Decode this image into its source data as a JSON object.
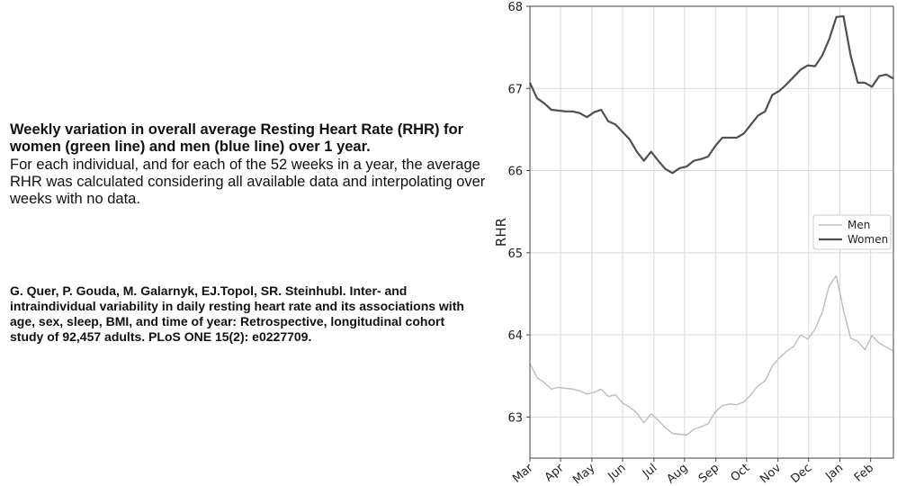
{
  "caption": {
    "title": "Weekly variation in overall average Resting Heart Rate (RHR) for women (green line) and men (blue line) over 1 year.",
    "body": "For each individual, and for each of the 52 weeks in a year, the average RHR was calculated considering all available data and interpolating over weeks with no data."
  },
  "citation": "G. Quer, P. Gouda, M. Galarnyk, EJ.Topol, SR. Steinhubl. Inter- and intraindividual variability in daily resting heart rate and its associations with age, sex, sleep, BMI, and time of year: Retrospective, longitudinal cohort study of 92,457 adults. PLoS ONE 15(2): e0227709.",
  "chart_data": {
    "type": "line",
    "title": "",
    "xlabel": "",
    "ylabel": "RHR",
    "ylim": [
      62.5,
      68
    ],
    "yticks": [
      63,
      64,
      65,
      66,
      67,
      68
    ],
    "xticks": [
      "Mar",
      "Apr",
      "May",
      "Jun",
      "Jul",
      "Aug",
      "Sep",
      "Oct",
      "Nov",
      "Dec",
      "Jan",
      "Feb"
    ],
    "xtick_weeks": [
      0,
      4.3,
      8.7,
      13,
      17.4,
      21.7,
      26.1,
      30.4,
      34.8,
      39.1,
      43.5,
      47.8
    ],
    "xlim": [
      0,
      51
    ],
    "grid": true,
    "legend_position": "right",
    "series": [
      {
        "name": "Men",
        "color": "#bdbdbd",
        "x": [
          0,
          1,
          2,
          3,
          4,
          5,
          6,
          7,
          8,
          9,
          10,
          11,
          12,
          13,
          14,
          15,
          16,
          17,
          18,
          19,
          20,
          21,
          22,
          23,
          24,
          25,
          26,
          27,
          28,
          29,
          30,
          31,
          32,
          33,
          34,
          35,
          36,
          37,
          38,
          39,
          40,
          41,
          42,
          43,
          44,
          45,
          46,
          47,
          48,
          49,
          50,
          51
        ],
        "values": [
          63.65,
          63.48,
          63.42,
          63.34,
          63.36,
          63.35,
          63.34,
          63.32,
          63.28,
          63.3,
          63.34,
          63.25,
          63.27,
          63.17,
          63.12,
          63.05,
          62.93,
          63.04,
          62.96,
          62.87,
          62.8,
          62.79,
          62.78,
          62.85,
          62.88,
          62.92,
          63.06,
          63.14,
          63.16,
          63.15,
          63.18,
          63.27,
          63.38,
          63.44,
          63.62,
          63.72,
          63.8,
          63.86,
          64,
          63.95,
          64.07,
          64.27,
          64.6,
          64.72,
          64.3,
          63.96,
          63.92,
          63.82,
          63.99,
          63.9,
          63.85,
          63.8
        ]
      },
      {
        "name": "Women",
        "color": "#505050",
        "x": [
          0,
          1,
          2,
          3,
          4,
          5,
          6,
          7,
          8,
          9,
          10,
          11,
          12,
          13,
          14,
          15,
          16,
          17,
          18,
          19,
          20,
          21,
          22,
          23,
          24,
          25,
          26,
          27,
          28,
          29,
          30,
          31,
          32,
          33,
          34,
          35,
          36,
          37,
          38,
          39,
          40,
          41,
          42,
          43,
          44,
          45,
          46,
          47,
          48,
          49,
          50,
          51
        ],
        "values": [
          67.07,
          66.88,
          66.82,
          66.74,
          66.73,
          66.72,
          66.72,
          66.7,
          66.65,
          66.71,
          66.74,
          66.6,
          66.56,
          66.47,
          66.38,
          66.23,
          66.12,
          66.23,
          66.12,
          66.02,
          65.97,
          66.03,
          66.05,
          66.12,
          66.14,
          66.17,
          66.3,
          66.4,
          66.4,
          66.4,
          66.45,
          66.56,
          66.67,
          66.72,
          66.92,
          66.97,
          67.05,
          67.14,
          67.23,
          67.28,
          67.27,
          67.4,
          67.6,
          67.87,
          67.88,
          67.4,
          67.07,
          67.07,
          67.02,
          67.15,
          67.17,
          67.12
        ]
      }
    ]
  }
}
